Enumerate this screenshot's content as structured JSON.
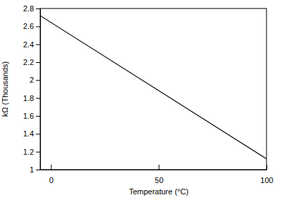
{
  "chart_data": {
    "type": "line",
    "x_label": "Temperature (°C)",
    "y_label": "kΩ (Thousands)",
    "x": [
      -5,
      100
    ],
    "values": [
      2.72,
      1.12
    ],
    "color": "#000000",
    "xlim": [
      -5,
      100
    ],
    "xticks": [
      0,
      50,
      100
    ],
    "ylim": [
      1,
      2.8
    ],
    "yticks": [
      1,
      {
        "value": 1.2,
        "label": "1.2"
      },
      {
        "value": 1.4,
        "label": "1.4"
      },
      {
        "value": 1.6,
        "label": "1.6"
      },
      {
        "value": 1.8,
        "label": "1.8"
      },
      2,
      {
        "value": 2.2,
        "label": "2.2"
      },
      {
        "value": 2.4,
        "label": "2.4"
      },
      {
        "value": 2.6,
        "label": "2.6"
      },
      {
        "value": 2.8,
        "label": "2.8"
      }
    ],
    "grid": false
  }
}
